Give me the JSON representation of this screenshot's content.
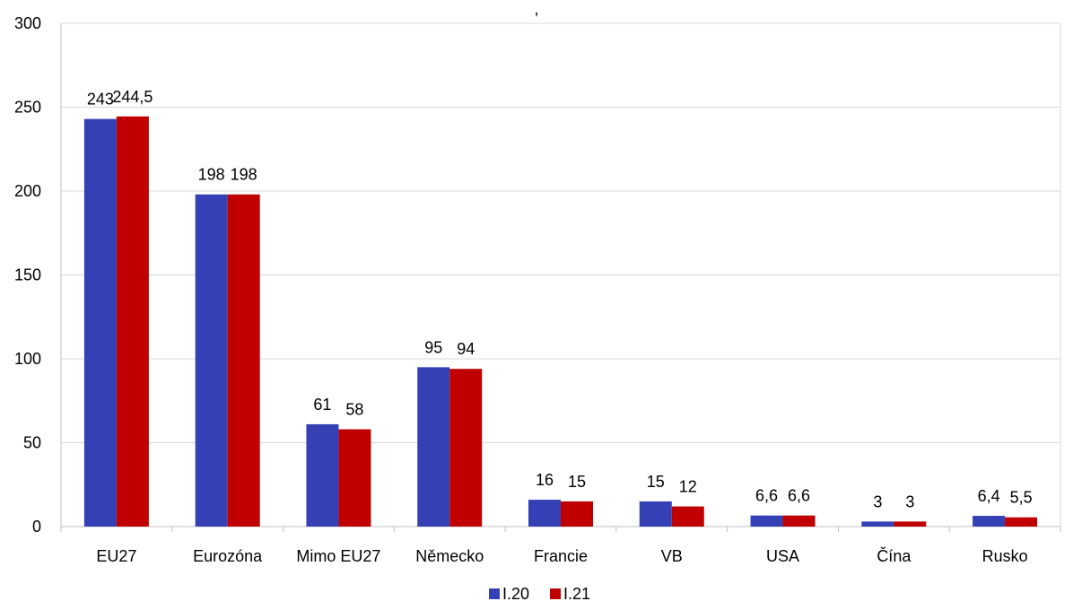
{
  "chart_data": {
    "type": "bar",
    "title": ",",
    "xlabel": "",
    "ylabel": "",
    "ylim": [
      0,
      300
    ],
    "yticks": [
      0,
      50,
      100,
      150,
      200,
      250,
      300
    ],
    "grid": true,
    "legend_position": "bottom-center",
    "categories": [
      "EU27",
      "Eurozóna",
      "Mimo EU27",
      "Německo",
      "Francie",
      "VB",
      "USA",
      "Čína",
      "Rusko"
    ],
    "series": [
      {
        "name": "I.20",
        "color": "#3540B5",
        "values": [
          243,
          198,
          61,
          95,
          16,
          15,
          6.6,
          3,
          6.4
        ],
        "labels": [
          "243",
          "198",
          "61",
          "95",
          "16",
          "15",
          "6,6",
          "3",
          "6,4"
        ]
      },
      {
        "name": "I.21",
        "color": "#C00000",
        "values": [
          244.5,
          198,
          58,
          94,
          15,
          12,
          6.6,
          3,
          5.5
        ],
        "labels": [
          "244,5",
          "198",
          "58",
          "94",
          "15",
          "12",
          "6,6",
          "3",
          "5,5"
        ]
      }
    ]
  }
}
